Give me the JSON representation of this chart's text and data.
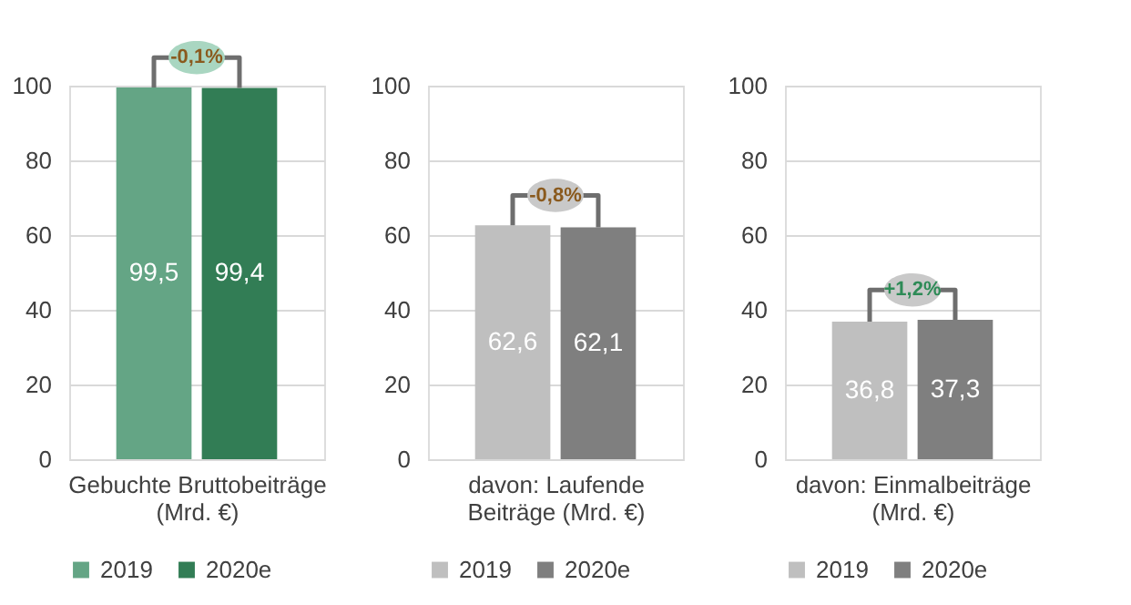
{
  "chart_data": [
    {
      "type": "bar",
      "categories": [
        "Gebuchte Bruttobeiträge (Mrd. €)"
      ],
      "series": [
        {
          "name": "2019",
          "color": "#64a585",
          "values": [
            99.5
          ],
          "value_labels": [
            "99,5"
          ]
        },
        {
          "name": "2020e",
          "color": "#327d55",
          "values": [
            99.4
          ],
          "value_labels": [
            "99,4"
          ]
        }
      ],
      "annotations": [
        "-0,1%"
      ],
      "ylim": [
        0,
        100
      ],
      "yticks": [
        0,
        20,
        40,
        60,
        80,
        100
      ],
      "grid": "y",
      "legend": "bottom"
    },
    {
      "type": "bar",
      "categories": [
        "davon: Laufende Beiträge (Mrd. €)"
      ],
      "series": [
        {
          "name": "2019",
          "color": "#bfbfbf",
          "values": [
            62.6
          ],
          "value_labels": [
            "62,6"
          ]
        },
        {
          "name": "2020e",
          "color": "#7f7f7f",
          "values": [
            62.1
          ],
          "value_labels": [
            "62,1"
          ]
        }
      ],
      "annotations": [
        "-0,8%"
      ],
      "ylim": [
        0,
        100
      ],
      "yticks": [
        0,
        20,
        40,
        60,
        80,
        100
      ],
      "grid": "y",
      "legend": "bottom"
    },
    {
      "type": "bar",
      "categories": [
        "davon: Einmalbeiträge (Mrd. €)"
      ],
      "series": [
        {
          "name": "2019",
          "color": "#bfbfbf",
          "values": [
            36.8
          ],
          "value_labels": [
            "36,8"
          ]
        },
        {
          "name": "2020e",
          "color": "#7f7f7f",
          "values": [
            37.3
          ],
          "value_labels": [
            "37,3"
          ]
        }
      ],
      "annotations": [
        "+1,2%"
      ],
      "ylim": [
        0,
        100
      ],
      "yticks": [
        0,
        20,
        40,
        60,
        80,
        100
      ],
      "grid": "y",
      "legend": "bottom"
    }
  ]
}
